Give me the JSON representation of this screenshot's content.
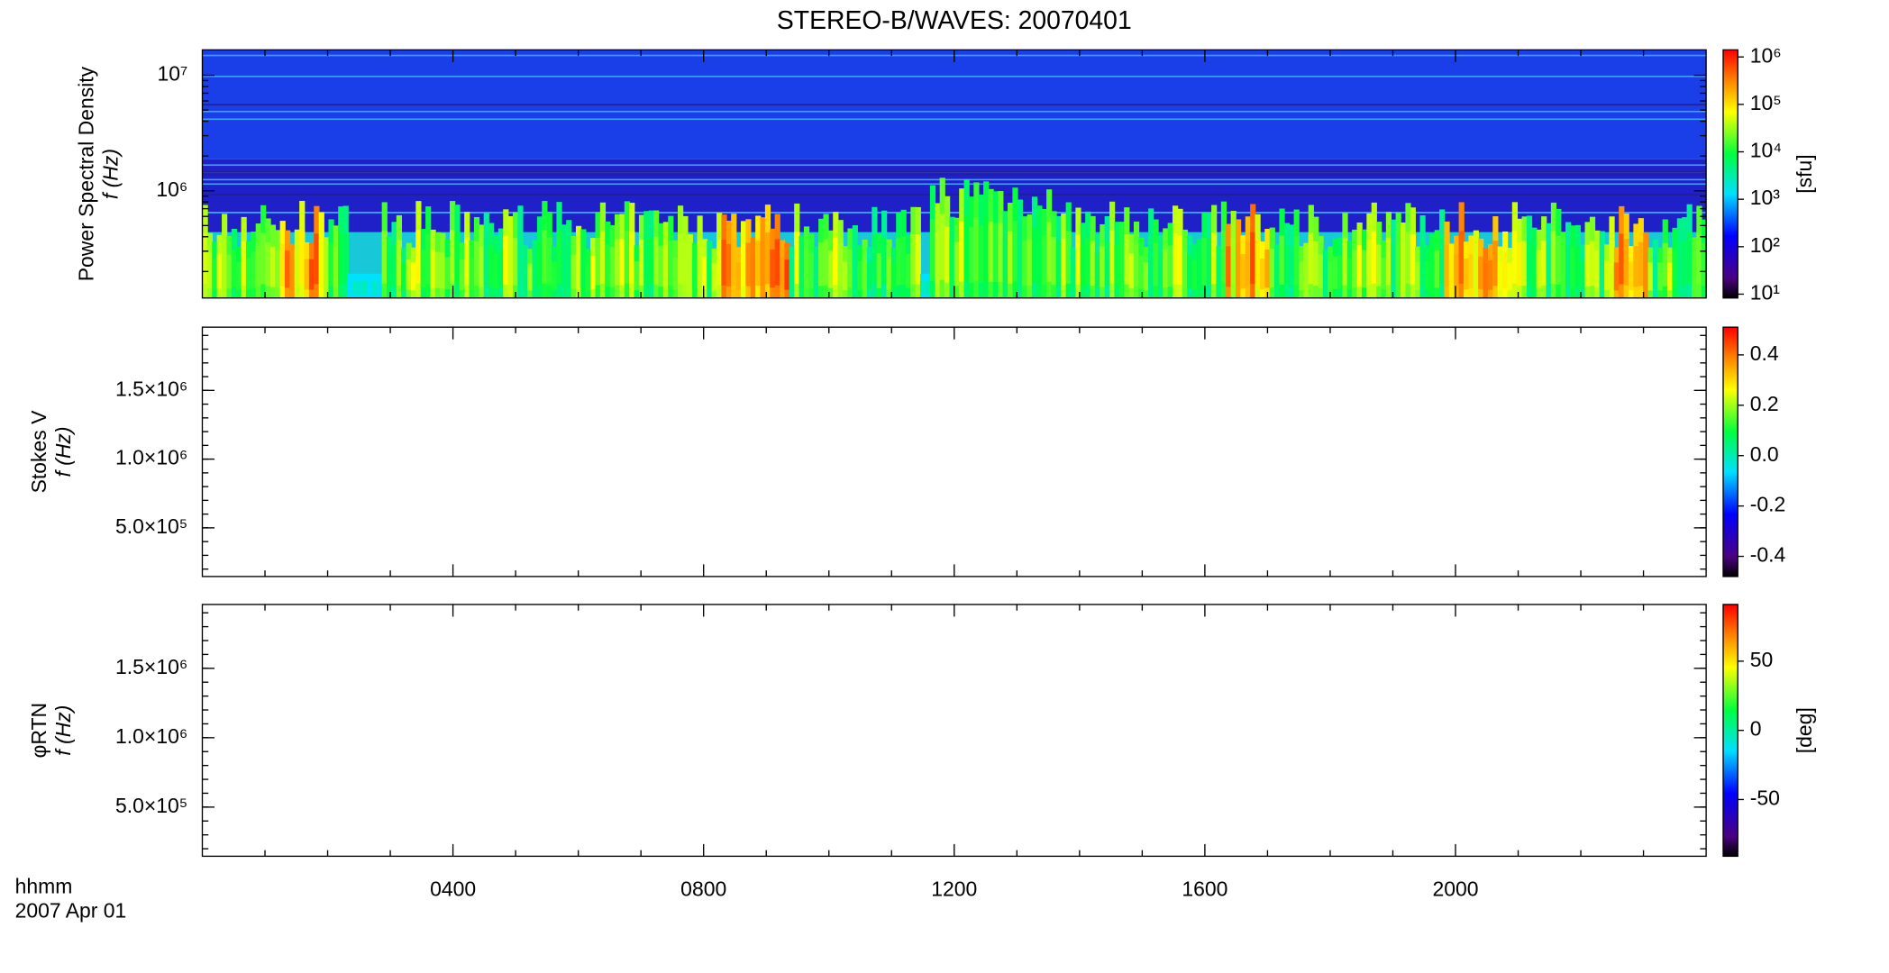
{
  "chart_data": [
    {
      "type": "heatmap",
      "title": "STEREO-B/WAVES: 20070401",
      "ylabel": [
        "Power Spectral Density",
        "f (Hz)"
      ],
      "ylog": true,
      "ylim": [
        118000,
        16600000
      ],
      "yticks": [
        {
          "value": 1000000,
          "label": "10⁶"
        },
        {
          "value": 10000000,
          "label": "10⁷"
        }
      ],
      "xlim": [
        0,
        24
      ],
      "colorbar": {
        "log": true,
        "lim": [
          8.3,
          1410000
        ],
        "label": "[sfu]",
        "ticks": [
          {
            "value": 10,
            "label": "10¹"
          },
          {
            "value": 100,
            "label": "10²"
          },
          {
            "value": 1000,
            "label": "10³"
          },
          {
            "value": 10000,
            "label": "10⁴"
          },
          {
            "value": 100000,
            "label": "10⁵"
          },
          {
            "value": 1000000,
            "label": "10⁶"
          }
        ]
      }
    },
    {
      "type": "heatmap",
      "ylabel": [
        "Stokes V",
        "f (Hz)"
      ],
      "ylog": false,
      "ylim": [
        146000,
        1960000
      ],
      "yticks": [
        {
          "value": 500000,
          "label": "5.0×10⁵"
        },
        {
          "value": 1000000,
          "label": "1.0×10⁶"
        },
        {
          "value": 1500000,
          "label": "1.5×10⁶"
        }
      ],
      "xlim": [
        0,
        24
      ],
      "colorbar": {
        "log": false,
        "lim": [
          -0.48,
          0.51
        ],
        "label": null,
        "ticks": [
          -0.4,
          -0.2,
          {
            "value": 0,
            "label": "0.0"
          },
          0.2,
          0.4
        ]
      }
    },
    {
      "type": "heatmap",
      "ylabel": [
        "φRTN",
        "f (Hz)"
      ],
      "ylog": false,
      "ylim": [
        146000,
        1960000
      ],
      "yticks": [
        {
          "value": 500000,
          "label": "5.0×10⁵"
        },
        {
          "value": 1000000,
          "label": "1.0×10⁶"
        },
        {
          "value": 1500000,
          "label": "1.5×10⁶"
        }
      ],
      "xlim": [
        0,
        24
      ],
      "xlabel": "hhmm",
      "date": "2007 Apr 01",
      "xticks": [
        {
          "value": 4,
          "label": "0400"
        },
        {
          "value": 8,
          "label": "0800"
        },
        {
          "value": 12,
          "label": "1200"
        },
        {
          "value": 16,
          "label": "1600"
        },
        {
          "value": 20,
          "label": "2000"
        }
      ],
      "colorbar": {
        "log": false,
        "lim": [
          -91,
          91
        ],
        "label": "[deg]",
        "ticks": [
          -50,
          0,
          50
        ]
      }
    }
  ]
}
